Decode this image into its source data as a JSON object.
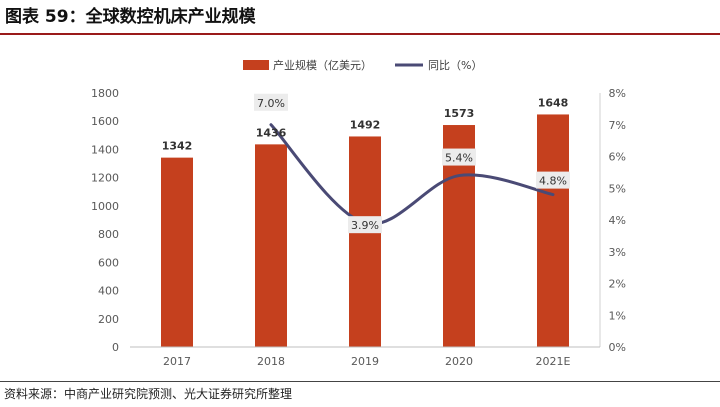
{
  "header": {
    "title": "图表 59：全球数控机床产业规模"
  },
  "footer": {
    "source": "资料来源：中商产业研究院预测、光大证券研究所整理"
  },
  "colors": {
    "bar": "#C5401E",
    "line": "#4A4A75",
    "rule": "#9A1A1A"
  },
  "chart_data": {
    "type": "bar",
    "title": "",
    "categories": [
      "2017",
      "2018",
      "2019",
      "2020",
      "2021E"
    ],
    "series": [
      {
        "name": "产业规模（亿美元）",
        "type": "bar",
        "axis": "left",
        "values": [
          1342,
          1436,
          1492,
          1573,
          1648
        ]
      },
      {
        "name": "同比（%）",
        "type": "line",
        "axis": "right",
        "values": [
          null,
          7.0,
          3.9,
          5.4,
          4.8
        ]
      }
    ],
    "bar_labels": [
      "1342",
      "1436",
      "1492",
      "1573",
      "1648"
    ],
    "line_labels": [
      "",
      "7.0%",
      "3.9%",
      "5.4%",
      "4.8%"
    ],
    "y_left": {
      "min": 0,
      "max": 1800,
      "ticks": [
        "0",
        "200",
        "400",
        "600",
        "800",
        "1000",
        "1200",
        "1400",
        "1600",
        "1800"
      ]
    },
    "y_right": {
      "min": 0,
      "max": 8,
      "ticks": [
        "0%",
        "1%",
        "2%",
        "3%",
        "4%",
        "5%",
        "6%",
        "7%",
        "8%"
      ]
    },
    "legend": {
      "position": "top",
      "items": [
        "产业规模（亿美元）",
        "同比（%）"
      ]
    },
    "grid": false
  }
}
